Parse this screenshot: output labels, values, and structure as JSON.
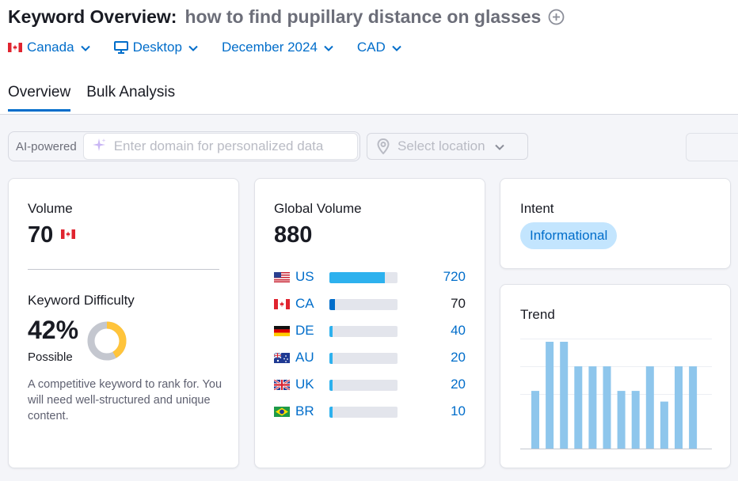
{
  "header": {
    "title": "Keyword Overview:",
    "keyword": "how to find pupillary distance on glasses",
    "add_icon": "plus-circle-icon"
  },
  "filters": {
    "country": "Canada",
    "device": "Desktop",
    "date": "December 2024",
    "currency": "CAD"
  },
  "tabs": [
    {
      "label": "Overview",
      "active": true
    },
    {
      "label": "Bulk Analysis",
      "active": false
    }
  ],
  "ai_bar": {
    "label": "AI-powered",
    "placeholder": "Enter domain for personalized data",
    "location_placeholder": "Select location"
  },
  "volume_card": {
    "label": "Volume",
    "value": "70",
    "flag": "CA",
    "kd_label": "Keyword Difficulty",
    "kd_value": "42%",
    "kd_percent": 42,
    "kd_level": "Possible",
    "kd_description": "A competitive keyword to rank for. You will need well-structured and unique content.",
    "kd_color": "#ffc43b"
  },
  "global_volume": {
    "label": "Global Volume",
    "total": "880",
    "max": 880,
    "rows": [
      {
        "code": "US",
        "value": "720",
        "num": 720,
        "highlight": false
      },
      {
        "code": "CA",
        "value": "70",
        "num": 70,
        "highlight": true
      },
      {
        "code": "DE",
        "value": "40",
        "num": 40,
        "highlight": false
      },
      {
        "code": "AU",
        "value": "20",
        "num": 20,
        "highlight": false
      },
      {
        "code": "UK",
        "value": "20",
        "num": 20,
        "highlight": false
      },
      {
        "code": "BR",
        "value": "10",
        "num": 10,
        "highlight": false
      }
    ]
  },
  "intent": {
    "label": "Intent",
    "value": "Informational"
  },
  "trend": {
    "label": "Trend",
    "values": [
      0.54,
      1.0,
      1.0,
      0.77,
      0.77,
      0.77,
      0.54,
      0.54,
      0.77,
      0.44,
      0.77,
      0.77
    ],
    "bar_color": "#8ec6ec"
  },
  "colors": {
    "accent": "#006dca",
    "bar": "#2db1ee",
    "intent_bg": "#c3e5fe"
  }
}
